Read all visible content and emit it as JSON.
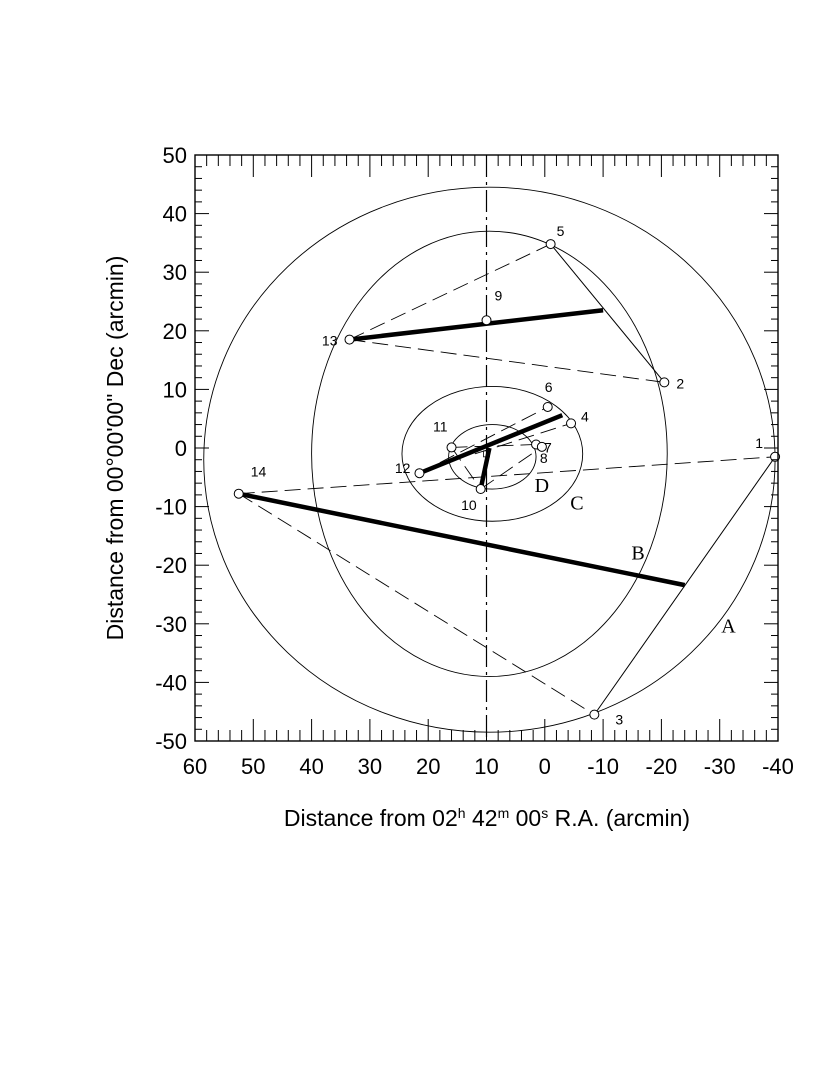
{
  "chart_data": {
    "type": "scatter",
    "xlabel": {
      "main": "Distance from 02",
      "h": "h",
      "mid1": " 42",
      "m": "m",
      "mid2": " 00",
      "s": "s",
      "end": " R.A. (arcmin)"
    },
    "ylabel": "Distance from 00°00'00\" Dec (arcmin)",
    "xlim": [
      60,
      -40
    ],
    "ylim": [
      -50,
      50
    ],
    "x_ticks": [
      60,
      50,
      40,
      30,
      20,
      10,
      0,
      -10,
      -20,
      -30,
      -40
    ],
    "x_tick_labels": [
      "60",
      "50",
      "40",
      "30",
      "20",
      "10",
      "0",
      "-10",
      "-20",
      "-30",
      "-40"
    ],
    "y_ticks": [
      50,
      40,
      30,
      20,
      10,
      0,
      -10,
      -20,
      -30,
      -40,
      -50
    ],
    "y_tick_labels": [
      "50",
      "40",
      "30",
      "20",
      "10",
      "0",
      "-10",
      "-20",
      "-30",
      "-40",
      "-50"
    ],
    "vertical_reference_x": 10,
    "points": [
      {
        "label": "1",
        "x": -39.5,
        "y": -1.5
      },
      {
        "label": "2",
        "x": -20.5,
        "y": 11.2
      },
      {
        "label": "3",
        "x": -8.5,
        "y": -45.5
      },
      {
        "label": "4",
        "x": -4.5,
        "y": 4.2
      },
      {
        "label": "5",
        "x": -1,
        "y": 34.8
      },
      {
        "label": "6",
        "x": -0.5,
        "y": 7
      },
      {
        "label": "7",
        "x": 1.5,
        "y": 0.6
      },
      {
        "label": "8",
        "x": 0.5,
        "y": 0.2
      },
      {
        "label": "9",
        "x": 10,
        "y": 21.8
      },
      {
        "label": "10",
        "x": 11,
        "y": -7
      },
      {
        "label": "11",
        "x": 16,
        "y": 0.1
      },
      {
        "label": "12",
        "x": 21.5,
        "y": -4.3
      },
      {
        "label": "13",
        "x": 33.5,
        "y": 18.5
      },
      {
        "label": "14",
        "x": 52.5,
        "y": -7.8
      }
    ],
    "thin_lines": [
      [
        [
          -1,
          34.8
        ],
        [
          -20.5,
          11.2
        ]
      ],
      [
        [
          -39.5,
          -1.5
        ],
        [
          -8.5,
          -45.5
        ]
      ]
    ],
    "dashed_lines": [
      [
        [
          33.5,
          18.5
        ],
        [
          -1,
          34.8
        ]
      ],
      [
        [
          33.5,
          18.5
        ],
        [
          -20.5,
          11.2
        ]
      ],
      [
        [
          52.5,
          -7.8
        ],
        [
          -39.5,
          -1.5
        ]
      ],
      [
        [
          52.5,
          -7.8
        ],
        [
          -8.5,
          -45.5
        ]
      ],
      [
        [
          21.5,
          -4.3
        ],
        [
          -0.5,
          7
        ]
      ],
      [
        [
          16,
          0.1
        ],
        [
          1.5,
          0.6
        ]
      ],
      [
        [
          16,
          0.1
        ],
        [
          11,
          -7
        ]
      ],
      [
        [
          11,
          -7
        ],
        [
          0.5,
          0.2
        ]
      ],
      [
        [
          12,
          -1
        ],
        [
          -4.5,
          4.2
        ]
      ]
    ],
    "thick_lines": [
      [
        [
          33.5,
          18.5
        ],
        [
          -10,
          23.5
        ]
      ],
      [
        [
          52.5,
          -7.8
        ],
        [
          -24,
          -23.4
        ]
      ],
      [
        [
          21.5,
          -4.3
        ],
        [
          -3,
          5.6
        ]
      ],
      [
        [
          11,
          -7
        ],
        [
          9.5,
          0
        ]
      ]
    ],
    "ellipses": [
      {
        "label": "A",
        "cx": 9.5,
        "cy": -2,
        "rx": 49,
        "ry": 46.5,
        "label_x": -31.5,
        "label_y": -31.5
      },
      {
        "label": "B",
        "cx": 9.5,
        "cy": -1,
        "rx": 30.5,
        "ry": 38,
        "label_x": -16,
        "label_y": -19
      },
      {
        "label": "C",
        "cx": 9,
        "cy": -1,
        "rx": 15.5,
        "ry": 11.5,
        "label_x": -5.5,
        "label_y": -10.5
      },
      {
        "label": "D",
        "cx": 9,
        "cy": -1.5,
        "rx": 7.5,
        "ry": 5.5,
        "label_x": 0.5,
        "label_y": -7.5
      }
    ],
    "small_square": {
      "x": 10,
      "y": -1
    },
    "grid": false,
    "legend": "none"
  }
}
